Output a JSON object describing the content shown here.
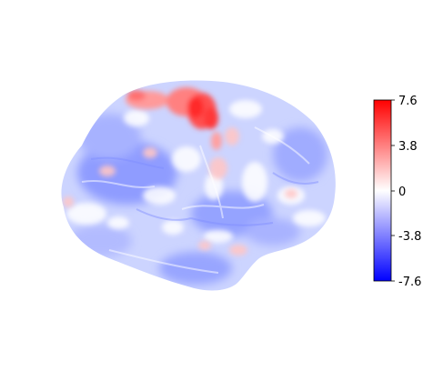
{
  "colorbar": {
    "ticks": [
      "7.6",
      "3.8",
      "0",
      "-3.8",
      "-7.6"
    ],
    "max_value": 7.6,
    "min_value": -7.6,
    "colors": {
      "top": "#ff0000",
      "middle": "#ffffff",
      "bottom": "#0000ff"
    }
  },
  "surface": {
    "view": "lateral",
    "colormap": "bwr"
  }
}
